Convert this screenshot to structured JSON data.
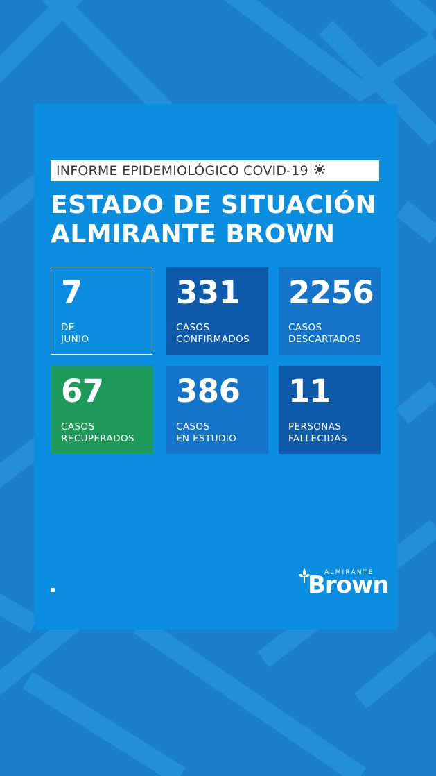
{
  "header": {
    "kicker": "INFORME EPIDEMIOLÓGICO COVID-19",
    "kicker_icon": "virus-icon",
    "title_line1": "ESTADO DE SITUACIÓN",
    "title_line2": "ALMIRANTE BROWN"
  },
  "stats": [
    {
      "value": "7",
      "label_line1": "DE",
      "label_line2": "JUNIO",
      "color": "outline"
    },
    {
      "value": "331",
      "label_line1": "CASOS",
      "label_line2": "CONFIRMADOS",
      "color": "#0f5bab"
    },
    {
      "value": "2256",
      "label_line1": "CASOS",
      "label_line2": "DESCARTADOS",
      "color": "#1474c9"
    },
    {
      "value": "67",
      "label_line1": "CASOS",
      "label_line2": "RECUPERADOS",
      "color": "#1d9a5a"
    },
    {
      "value": "386",
      "label_line1": "CASOS",
      "label_line2": "EN ESTUDIO",
      "color": "#1474c9"
    },
    {
      "value": "11",
      "label_line1": "PERSONAS",
      "label_line2": "FALLECIDAS",
      "color": "#0f5bab"
    }
  ],
  "logo": {
    "small": "ALMIRANTE",
    "big": "Brown"
  },
  "colors": {
    "background": "#1b7fd0",
    "panel": "#0b8ee0"
  }
}
